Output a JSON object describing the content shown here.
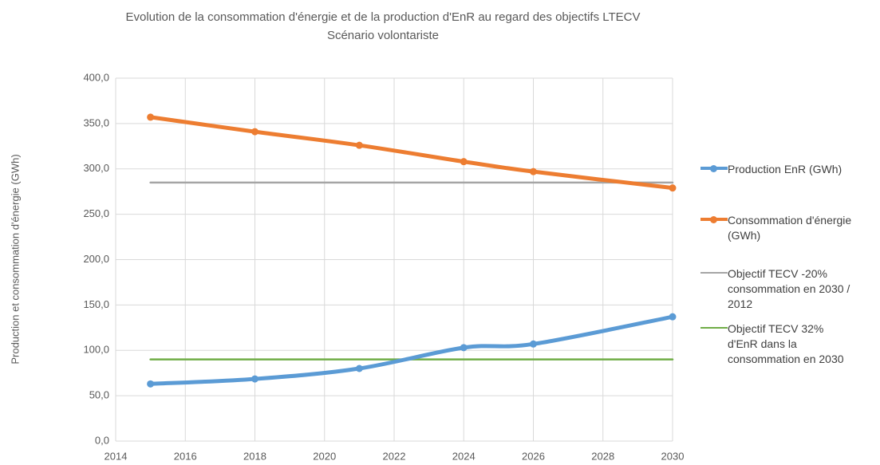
{
  "chart_data": {
    "type": "line",
    "title": "Evolution de la consommation d'énergie et de la production d'EnR au regard des objectifs LTECV",
    "subtitle": "Scénario volontariste",
    "y_label": "Production et consommation d'énergie (GWh)",
    "x": [
      2015,
      2018,
      2021,
      2024,
      2026,
      2030
    ],
    "series": [
      {
        "name": "Production EnR (GWh)",
        "color": "#5b9bd5",
        "markers": true,
        "values": [
          63,
          68.5,
          80,
          103,
          107,
          137
        ]
      },
      {
        "name": "Consommation d'énergie (GWh)",
        "color": "#ed7d31",
        "markers": true,
        "values": [
          357,
          341,
          326,
          308,
          297,
          279
        ]
      },
      {
        "name": "Objectif TECV -20% consommation en 2030 / 2012",
        "color": "#a5a5a5",
        "markers": false,
        "values": [
          285,
          285,
          285,
          285,
          285,
          285
        ]
      },
      {
        "name": "Objectif TECV 32% d'EnR dans la consommation en 2030",
        "color": "#70ad47",
        "markers": false,
        "values": [
          90,
          90,
          90,
          90,
          90,
          90
        ]
      }
    ],
    "xlim": [
      2014,
      2030
    ],
    "xticks": [
      2014,
      2016,
      2018,
      2020,
      2022,
      2024,
      2026,
      2028,
      2030
    ],
    "ylim": [
      0,
      400
    ],
    "yticks": [
      {
        "value": 0,
        "label": "0,0"
      },
      {
        "value": 50,
        "label": "50,0"
      },
      {
        "value": 100,
        "label": "100,0"
      },
      {
        "value": 150,
        "label": "150,0"
      },
      {
        "value": 200,
        "label": "200,0"
      },
      {
        "value": 250,
        "label": "250,0"
      },
      {
        "value": 300,
        "label": "300,0"
      },
      {
        "value": 350,
        "label": "350,0"
      },
      {
        "value": 400,
        "label": "400,0"
      }
    ],
    "grid": true,
    "smooth": true,
    "legend": "right"
  }
}
